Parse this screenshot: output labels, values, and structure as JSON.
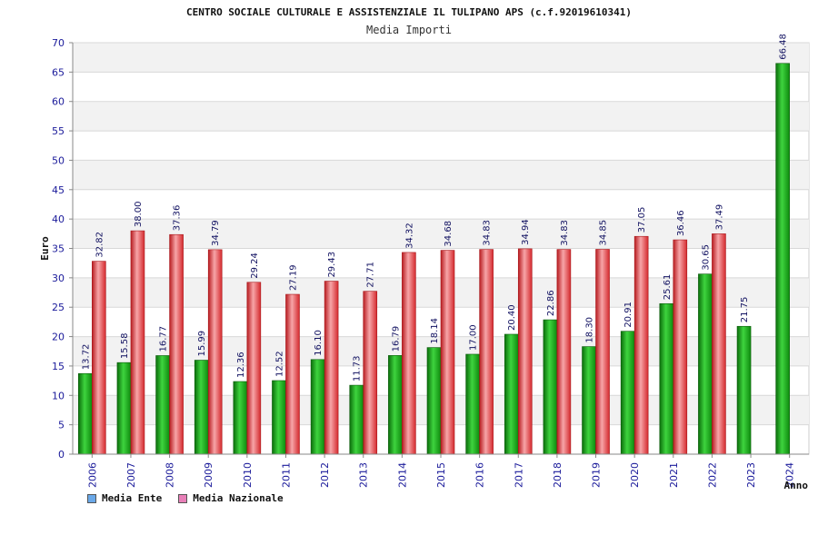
{
  "header": {
    "title": "CENTRO SOCIALE CULTURALE E ASSISTENZIALE IL TULIPANO APS (c.f.92019610341)",
    "subtitle": "Media Importi"
  },
  "legend": {
    "items": [
      {
        "label": "Media Ente",
        "color": "#6aa8e8"
      },
      {
        "label": "Media Nazionale",
        "color": "#e87fb8"
      }
    ]
  },
  "colors": {
    "ente_bar": "#22b022",
    "nazionale_bar": "#e8383c",
    "band": "#f2f2f2",
    "grid": "#d8d8d8"
  },
  "chart_data": {
    "type": "bar",
    "title": "CENTRO SOCIALE CULTURALE E ASSISTENZIALE IL TULIPANO APS (c.f.92019610341)",
    "subtitle": "Media Importi",
    "xlabel": "Anno",
    "ylabel": "Euro",
    "ylim": [
      0,
      70
    ],
    "yticks": [
      0,
      5,
      10,
      15,
      20,
      25,
      30,
      35,
      40,
      45,
      50,
      55,
      60,
      65,
      70
    ],
    "grid": true,
    "legend_position": "bottom-left",
    "categories": [
      "2006",
      "2007",
      "2008",
      "2009",
      "2010",
      "2011",
      "2012",
      "2013",
      "2014",
      "2015",
      "2016",
      "2017",
      "2018",
      "2019",
      "2020",
      "2021",
      "2022",
      "2023",
      "2024"
    ],
    "series": [
      {
        "name": "Media Ente",
        "values": [
          13.72,
          15.58,
          16.77,
          15.99,
          12.36,
          12.52,
          16.1,
          11.73,
          16.79,
          18.14,
          17.0,
          20.4,
          22.86,
          18.3,
          20.91,
          25.61,
          30.65,
          21.75,
          66.48
        ],
        "labels": [
          "13.72",
          "15.58",
          "16.77",
          "15.99",
          "12.36",
          "12.52",
          "16.10",
          "11.73",
          "16.79",
          "18.14",
          "17.00",
          "20.40",
          "22.86",
          "18.30",
          "20.91",
          "25.61",
          "30.65",
          "21.75",
          "66.48"
        ]
      },
      {
        "name": "Media Nazionale",
        "values": [
          32.82,
          38.0,
          37.36,
          34.79,
          29.24,
          27.19,
          29.43,
          27.71,
          34.32,
          34.68,
          34.83,
          34.94,
          34.83,
          34.85,
          37.05,
          36.46,
          37.49,
          null,
          null
        ],
        "labels": [
          "32.82",
          "38.00",
          "37.36",
          "34.79",
          "29.24",
          "27.19",
          "29.43",
          "27.71",
          "34.32",
          "34.68",
          "34.83",
          "34.94",
          "34.83",
          "34.85",
          "37.05",
          "36.46",
          "37.49",
          null,
          null
        ]
      }
    ]
  }
}
